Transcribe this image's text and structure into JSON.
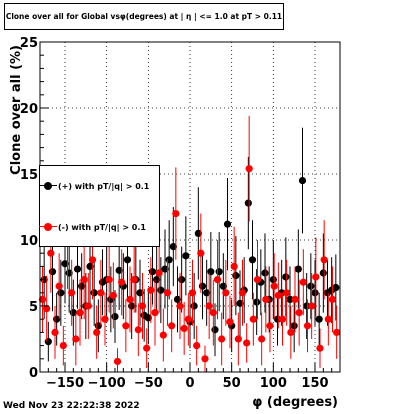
{
  "canvas": {
    "title": "Clone  over all for Global vsφ(degrees) at | η | <= 1.0 at pT > 0.11",
    "timestamp": "Wed Nov 23 22:22:38 2022"
  },
  "legend": {
    "entries": [
      {
        "label": "(+) with pT/|q| > 0.1",
        "color": "#000000"
      },
      {
        "label": "(-) with pT/|q| > 0.1",
        "color": "#ff0000"
      }
    ]
  },
  "chart_data": {
    "type": "scatter",
    "title": "Clone  over all for Global vsφ(degrees) at | η | <= 1.0 at pT > 0.11",
    "xlabel": "φ (degrees)",
    "ylabel": "Clone  over all (%)",
    "xlim": [
      -180,
      180
    ],
    "ylim": [
      0,
      25
    ],
    "xticks": [
      -150,
      -100,
      -50,
      0,
      50,
      100,
      150
    ],
    "yticks": [
      0,
      5,
      10,
      15,
      20,
      25
    ],
    "grid": true,
    "legend_position": "middle-left",
    "series": [
      {
        "name": "(+) with pT/|q| > 0.1",
        "color": "#000000",
        "points": [
          [
            -175,
            7.0,
            3.0
          ],
          [
            -170,
            2.3,
            1.5
          ],
          [
            -165,
            7.6,
            3.0
          ],
          [
            -160,
            4.0,
            2.0
          ],
          [
            -155,
            6.0,
            2.5
          ],
          [
            -150,
            8.2,
            3.0
          ],
          [
            -145,
            7.5,
            3.0
          ],
          [
            -140,
            4.5,
            2.5
          ],
          [
            -135,
            7.8,
            3.0
          ],
          [
            -130,
            6.5,
            2.5
          ],
          [
            -125,
            5.0,
            2.5
          ],
          [
            -120,
            8.0,
            3.0
          ],
          [
            -115,
            6.0,
            2.5
          ],
          [
            -110,
            3.5,
            2.0
          ],
          [
            -105,
            6.8,
            2.5
          ],
          [
            -100,
            7.0,
            3.0
          ],
          [
            -95,
            5.5,
            2.5
          ],
          [
            -90,
            4.2,
            2.0
          ],
          [
            -85,
            7.7,
            3.0
          ],
          [
            -80,
            6.5,
            2.5
          ],
          [
            -75,
            8.5,
            3.0
          ],
          [
            -70,
            5.0,
            2.5
          ],
          [
            -65,
            7.0,
            2.5
          ],
          [
            -60,
            6.0,
            2.5
          ],
          [
            -55,
            4.3,
            2.0
          ],
          [
            -50,
            4.1,
            2.0
          ],
          [
            -45,
            7.6,
            2.5
          ],
          [
            -40,
            7.0,
            2.5
          ],
          [
            -35,
            6.2,
            2.5
          ],
          [
            -30,
            7.8,
            3.0
          ],
          [
            -25,
            8.5,
            3.0
          ],
          [
            -20,
            9.5,
            3.0
          ],
          [
            -15,
            5.5,
            2.5
          ],
          [
            -10,
            7.0,
            2.5
          ],
          [
            -5,
            8.8,
            3.0
          ],
          [
            0,
            3.8,
            2.0
          ],
          [
            5,
            5.0,
            2.5
          ],
          [
            10,
            10.5,
            3.5
          ],
          [
            15,
            6.5,
            2.5
          ],
          [
            20,
            6.0,
            2.5
          ],
          [
            25,
            7.6,
            3.0
          ],
          [
            30,
            3.2,
            2.0
          ],
          [
            35,
            7.6,
            3.0
          ],
          [
            40,
            6.5,
            2.5
          ],
          [
            45,
            11.2,
            3.5
          ],
          [
            50,
            3.5,
            2.0
          ],
          [
            55,
            7.3,
            3.0
          ],
          [
            60,
            5.2,
            2.5
          ],
          [
            65,
            6.2,
            2.5
          ],
          [
            70,
            12.8,
            3.5
          ],
          [
            75,
            8.5,
            3.0
          ],
          [
            80,
            5.3,
            2.5
          ],
          [
            85,
            6.8,
            2.5
          ],
          [
            90,
            7.5,
            3.0
          ],
          [
            95,
            5.5,
            2.5
          ],
          [
            100,
            7.0,
            3.0
          ],
          [
            105,
            4.0,
            2.0
          ],
          [
            110,
            6.0,
            2.5
          ],
          [
            115,
            7.2,
            3.0
          ],
          [
            120,
            5.5,
            2.5
          ],
          [
            125,
            3.5,
            2.0
          ],
          [
            130,
            7.8,
            3.0
          ],
          [
            135,
            14.5,
            4.0
          ],
          [
            140,
            5.0,
            2.5
          ],
          [
            145,
            6.5,
            2.5
          ],
          [
            150,
            6.0,
            2.5
          ],
          [
            155,
            4.0,
            2.0
          ],
          [
            160,
            7.5,
            3.0
          ],
          [
            165,
            6.0,
            2.5
          ],
          [
            170,
            6.2,
            2.5
          ],
          [
            175,
            6.4,
            2.5
          ]
        ]
      },
      {
        "name": "(-) with pT/|q| > 0.1",
        "color": "#ff0000",
        "points": [
          [
            -177,
            5.5,
            2.5
          ],
          [
            -172,
            4.8,
            2.5
          ],
          [
            -167,
            9.0,
            3.0
          ],
          [
            -162,
            3.0,
            2.0
          ],
          [
            -157,
            6.5,
            2.5
          ],
          [
            -152,
            2.0,
            1.5
          ],
          [
            -147,
            9.8,
            3.5
          ],
          [
            -142,
            6.0,
            2.5
          ],
          [
            -137,
            2.5,
            2.0
          ],
          [
            -132,
            4.5,
            2.5
          ],
          [
            -127,
            7.0,
            3.0
          ],
          [
            -122,
            5.0,
            2.5
          ],
          [
            -117,
            8.5,
            3.0
          ],
          [
            -112,
            3.0,
            2.0
          ],
          [
            -107,
            6.0,
            2.5
          ],
          [
            -102,
            4.0,
            2.0
          ],
          [
            -97,
            7.0,
            2.5
          ],
          [
            -92,
            5.8,
            2.5
          ],
          [
            -87,
            0.8,
            1.0
          ],
          [
            -82,
            6.8,
            2.5
          ],
          [
            -77,
            3.5,
            2.0
          ],
          [
            -72,
            5.5,
            2.5
          ],
          [
            -67,
            7.0,
            2.5
          ],
          [
            -62,
            3.2,
            2.0
          ],
          [
            -57,
            5.0,
            2.5
          ],
          [
            -52,
            1.8,
            1.5
          ],
          [
            -47,
            6.2,
            2.5
          ],
          [
            -42,
            4.5,
            2.5
          ],
          [
            -37,
            7.5,
            3.0
          ],
          [
            -32,
            2.8,
            2.0
          ],
          [
            -27,
            6.0,
            2.5
          ],
          [
            -22,
            3.5,
            2.0
          ],
          [
            -17,
            12.0,
            3.5
          ],
          [
            -12,
            5.0,
            2.5
          ],
          [
            -7,
            3.3,
            2.0
          ],
          [
            -2,
            4.0,
            2.0
          ],
          [
            3,
            6.0,
            2.5
          ],
          [
            8,
            2.0,
            1.5
          ],
          [
            13,
            9.0,
            3.0
          ],
          [
            18,
            1.0,
            1.0
          ],
          [
            23,
            5.0,
            2.5
          ],
          [
            28,
            4.5,
            2.5
          ],
          [
            33,
            7.0,
            3.0
          ],
          [
            38,
            2.5,
            2.0
          ],
          [
            43,
            6.0,
            2.5
          ],
          [
            48,
            3.8,
            2.0
          ],
          [
            53,
            8.0,
            3.0
          ],
          [
            58,
            2.5,
            2.0
          ],
          [
            63,
            6.0,
            2.5
          ],
          [
            68,
            2.2,
            1.5
          ],
          [
            71,
            15.4,
            4.0
          ],
          [
            76,
            4.0,
            2.0
          ],
          [
            81,
            7.0,
            3.0
          ],
          [
            86,
            2.5,
            2.0
          ],
          [
            91,
            5.5,
            2.5
          ],
          [
            96,
            3.5,
            2.0
          ],
          [
            101,
            6.5,
            2.5
          ],
          [
            106,
            5.8,
            2.5
          ],
          [
            111,
            4.0,
            2.0
          ],
          [
            116,
            6.0,
            2.5
          ],
          [
            121,
            3.0,
            2.0
          ],
          [
            126,
            5.5,
            2.5
          ],
          [
            131,
            4.5,
            2.5
          ],
          [
            136,
            6.8,
            2.5
          ],
          [
            141,
            3.5,
            2.0
          ],
          [
            146,
            5.0,
            2.5
          ],
          [
            151,
            7.2,
            3.0
          ],
          [
            156,
            1.8,
            1.5
          ],
          [
            161,
            8.5,
            3.0
          ],
          [
            166,
            4.0,
            2.0
          ],
          [
            171,
            5.5,
            2.5
          ],
          [
            176,
            3.0,
            2.0
          ]
        ]
      }
    ]
  }
}
